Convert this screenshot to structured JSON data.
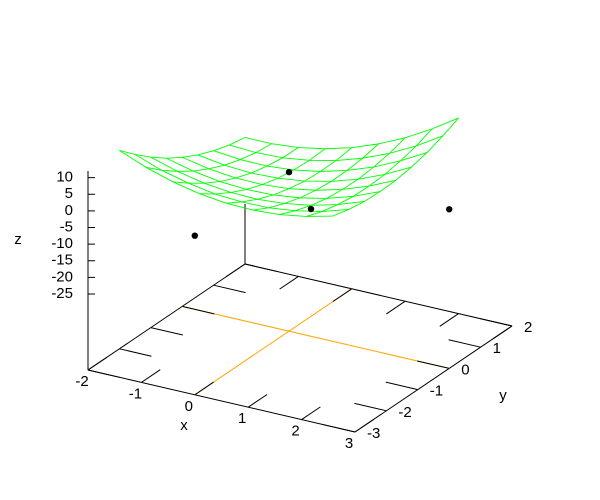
{
  "chart_data": {
    "type": "surface3d",
    "xlabel": "x",
    "ylabel": "y",
    "zlabel": "z",
    "xlim": [
      -2,
      3
    ],
    "ylim": [
      -3,
      2
    ],
    "zlim": [
      -25,
      12
    ],
    "xticks": [
      -2,
      -1,
      0,
      1,
      2,
      3
    ],
    "yticks": [
      -3,
      -2,
      -1,
      0,
      1,
      2
    ],
    "zticks": [
      -25,
      -20,
      -15,
      -10,
      -5,
      0,
      5,
      10
    ],
    "zeroaxis_color": "#ffa500",
    "border_color": "#000000",
    "surface": {
      "color": "#00ff00",
      "x": [
        -2,
        -1.5,
        -1,
        -0.5,
        0,
        0.5,
        1,
        1.5,
        2
      ],
      "y": [
        -2,
        -1.5,
        -1,
        -0.5,
        0,
        0.5,
        1,
        1.5,
        2
      ],
      "z": [
        [
          11.8,
          8.6,
          6.1,
          4.4,
          3.4,
          3.2,
          3.7,
          5.0,
          7.0
        ],
        [
          7.4,
          4.5,
          2.5,
          1.1,
          0.6,
          0.7,
          1.7,
          3.3,
          5.8
        ],
        [
          3.4,
          1.0,
          -0.7,
          -1.6,
          -1.8,
          -1.2,
          0.1,
          2.2,
          5.0
        ],
        [
          -0.1,
          -2.1,
          -3.4,
          -3.9,
          -3.7,
          -2.7,
          -1.0,
          1.5,
          4.8
        ],
        [
          -3,
          -4.6,
          -5.5,
          -5.6,
          -5,
          -3.6,
          -1.5,
          1.4,
          5
        ],
        [
          -5.5,
          -6.7,
          -7.2,
          -6.9,
          -5.9,
          -4.1,
          -1.6,
          1.7,
          5.8
        ],
        [
          -7.4,
          -8.2,
          -8.3,
          -7.6,
          -6.2,
          -4.0,
          -1.1,
          2.6,
          7.0
        ],
        [
          -8.9,
          -9.3,
          -9.0,
          -7.9,
          -6.1,
          -3.5,
          -0.2,
          3.9,
          8.8
        ],
        [
          -9.8,
          -9.8,
          -9.1,
          -7.6,
          -5.4,
          -2.4,
          1.3,
          5.8,
          11.0
        ]
      ]
    },
    "points": {
      "color": "#000000",
      "x": [
        0,
        0,
        1,
        3
      ],
      "y": [
        -3,
        0,
        -1,
        0
      ],
      "z": [
        0,
        0,
        -1,
        0
      ]
    }
  }
}
